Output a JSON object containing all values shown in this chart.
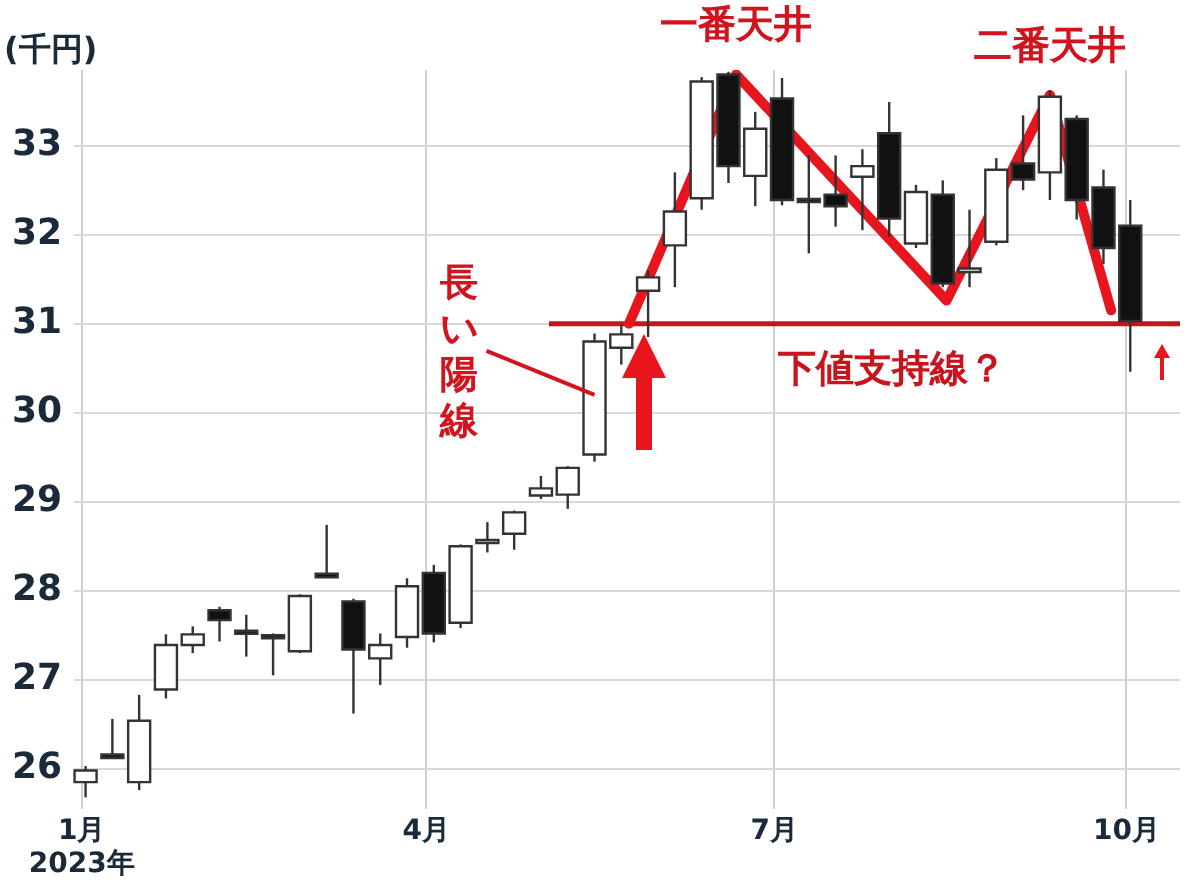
{
  "chart_data": {
    "type": "candlestick",
    "ylabel": "(千円)",
    "x": [
      "2023-01-02",
      "2023-01-09",
      "2023-01-16",
      "2023-01-23",
      "2023-01-30",
      "2023-02-06",
      "2023-02-13",
      "2023-02-20",
      "2023-02-27",
      "2023-03-06",
      "2023-03-13",
      "2023-03-20",
      "2023-03-27",
      "2023-04-03",
      "2023-04-10",
      "2023-04-17",
      "2023-04-24",
      "2023-05-01",
      "2023-05-08",
      "2023-05-15",
      "2023-05-22",
      "2023-05-29",
      "2023-06-05",
      "2023-06-12",
      "2023-06-19",
      "2023-06-26",
      "2023-07-03",
      "2023-07-10",
      "2023-07-17",
      "2023-07-24",
      "2023-07-31",
      "2023-08-07",
      "2023-08-14",
      "2023-08-21",
      "2023-08-28",
      "2023-09-04",
      "2023-09-11",
      "2023-09-18",
      "2023-09-25",
      "2023-10-02"
    ],
    "ohlc": [
      [
        25.85,
        26.03,
        25.68,
        25.98
      ],
      [
        26.16,
        26.56,
        26.12,
        26.12
      ],
      [
        25.85,
        26.83,
        25.76,
        26.54
      ],
      [
        26.89,
        27.51,
        26.79,
        27.39
      ],
      [
        27.39,
        27.6,
        27.3,
        27.51
      ],
      [
        27.78,
        27.82,
        27.43,
        27.67
      ],
      [
        27.55,
        27.73,
        27.26,
        27.53
      ],
      [
        27.5,
        27.52,
        27.05,
        27.48
      ],
      [
        27.32,
        27.96,
        27.3,
        27.94
      ],
      [
        28.19,
        28.74,
        28.15,
        28.15
      ],
      [
        27.88,
        27.91,
        26.62,
        27.34
      ],
      [
        27.24,
        27.52,
        26.94,
        27.39
      ],
      [
        27.48,
        28.14,
        27.36,
        28.05
      ],
      [
        28.2,
        28.29,
        27.42,
        27.52
      ],
      [
        27.64,
        28.52,
        27.58,
        28.5
      ],
      [
        28.55,
        28.77,
        28.43,
        28.57
      ],
      [
        28.64,
        28.9,
        28.46,
        28.88
      ],
      [
        29.07,
        29.29,
        29.03,
        29.15
      ],
      [
        29.08,
        29.4,
        28.92,
        29.38
      ],
      [
        29.53,
        30.89,
        29.45,
        30.8
      ],
      [
        30.73,
        30.99,
        30.54,
        30.88
      ],
      [
        31.37,
        31.6,
        30.85,
        31.52
      ],
      [
        31.88,
        32.7,
        31.41,
        32.26
      ],
      [
        32.41,
        33.77,
        32.28,
        33.72
      ],
      [
        33.8,
        33.83,
        32.58,
        32.77
      ],
      [
        32.66,
        33.38,
        32.32,
        33.19
      ],
      [
        33.53,
        33.76,
        32.33,
        32.39
      ],
      [
        32.4,
        32.89,
        31.79,
        32.38
      ],
      [
        32.45,
        32.89,
        32.09,
        32.32
      ],
      [
        32.65,
        32.96,
        32.05,
        32.77
      ],
      [
        33.14,
        33.49,
        31.98,
        32.18
      ],
      [
        31.9,
        32.56,
        31.85,
        32.48
      ],
      [
        32.45,
        32.61,
        31.41,
        31.45
      ],
      [
        31.58,
        32.28,
        31.41,
        31.62
      ],
      [
        31.92,
        32.86,
        31.88,
        32.73
      ],
      [
        32.8,
        33.34,
        32.5,
        32.62
      ],
      [
        32.7,
        33.62,
        32.39,
        33.55
      ],
      [
        33.3,
        33.34,
        32.17,
        32.39
      ],
      [
        32.53,
        32.73,
        31.67,
        31.85
      ],
      [
        32.1,
        32.39,
        30.46,
        31.03
      ]
    ],
    "series": [
      {
        "type": "line",
        "color": "#e8141e",
        "x": [
          "2023-05-24",
          "2023-06-21",
          "2023-08-15",
          "2023-09-11",
          "2023-09-27"
        ],
        "values": [
          31.0,
          33.8,
          31.26,
          33.57,
          31.15
        ]
      }
    ],
    "xlim": [
      "2022-12-30",
      "2023-10-15"
    ],
    "xticks": [
      {
        "value": "2023-01-01",
        "label": "1月\n2023年"
      },
      {
        "value": "2023-04-01",
        "label": "4月"
      },
      {
        "value": "2023-07-01",
        "label": "7月"
      },
      {
        "value": "2023-10-01",
        "label": "10月"
      }
    ],
    "ylim": [
      25.55,
      33.85
    ],
    "yticks": [
      26,
      27,
      28,
      29,
      30,
      31,
      32,
      33
    ],
    "grid": true,
    "legend": false,
    "ref_lines": [
      {
        "axis": "y",
        "value": 31,
        "label": "下値支持線？",
        "color": "#c8141e"
      }
    ],
    "annotations": [
      {
        "text": "一番天井",
        "x": "2023-06-21",
        "y": 33.8
      },
      {
        "text": "二番天井",
        "x": "2023-09-11",
        "y": 33.57
      },
      {
        "text": "長い陽線",
        "x": "2023-05-15",
        "y": 30.2
      }
    ]
  }
}
